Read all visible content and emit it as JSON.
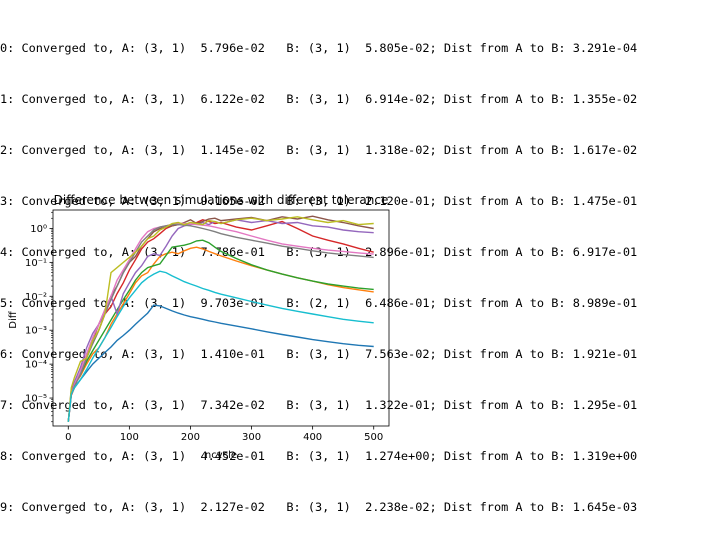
{
  "output": {
    "lines": [
      "0: Converged to, A: (3, 1)  5.796e-02   B: (3, 1)  5.805e-02; Dist from A to B: 3.291e-04",
      "1: Converged to, A: (3, 1)  6.122e-02   B: (3, 1)  6.914e-02; Dist from A to B: 1.355e-02",
      "2: Converged to, A: (3, 1)  1.145e-02   B: (3, 1)  1.318e-02; Dist from A to B: 1.617e-02",
      "3: Converged to, A: (3, 1)  9.165e-02   B: (3, 1)  2.120e-01; Dist from A to B: 1.475e-01",
      "4: Converged to, A: (3, 1)  7.786e-01   B: (3, 1)  2.896e-01; Dist from A to B: 6.917e-01",
      "5: Converged to, A: (3, 1)  9.703e-01   B: (2, 1)  6.486e-01; Dist from A to B: 8.989e-01",
      "6: Converged to, A: (3, 1)  1.410e-01   B: (3, 1)  7.563e-02; Dist from A to B: 1.921e-01",
      "7: Converged to, A: (3, 1)  7.342e-02   B: (3, 1)  1.322e-01; Dist from A to B: 1.295e-01",
      "8: Converged to, A: (3, 1)  4.452e-01   B: (3, 1)  1.274e+00; Dist from A to B: 1.319e+00",
      "9: Converged to, A: (3, 1)  2.127e-02   B: (3, 1)  2.238e-02; Dist from A to B: 1.645e-03"
    ]
  },
  "chart_data": {
    "type": "line",
    "title": "Difference between simulations with different tolerance",
    "xlabel": "ncycle",
    "ylabel": "Diff",
    "yscale": "log",
    "xlim": [
      -25,
      525
    ],
    "ylim": [
      1.5e-06,
      3.5
    ],
    "xticks": [
      0,
      100,
      200,
      300,
      400,
      500
    ],
    "xtick_labels": [
      "0",
      "100",
      "200",
      "300",
      "400",
      "500"
    ],
    "yticks": [
      1e-05,
      0.0001,
      0.001,
      0.01,
      0.1,
      1
    ],
    "ytick_labels": [
      "10⁻⁵",
      "10⁻⁴",
      "10⁻³",
      "10⁻²",
      "10⁻¹",
      "10⁰"
    ],
    "grid": false,
    "legend": "none",
    "x": [
      0,
      5,
      10,
      20,
      30,
      40,
      50,
      60,
      70,
      80,
      90,
      100,
      110,
      120,
      130,
      140,
      150,
      160,
      170,
      180,
      190,
      200,
      210,
      220,
      230,
      240,
      250,
      275,
      300,
      325,
      350,
      375,
      400,
      425,
      450,
      475,
      500
    ],
    "series": [
      {
        "color": "#1f77b4",
        "values": [
          2e-06,
          1.3e-05,
          2e-05,
          3.5e-05,
          6e-05,
          0.0001,
          0.00015,
          0.00022,
          0.00032,
          0.0005,
          0.0007,
          0.001,
          0.0015,
          0.0022,
          0.0032,
          0.0055,
          0.0052,
          0.0044,
          0.0037,
          0.0032,
          0.0028,
          0.0025,
          0.0023,
          0.0021,
          0.0019,
          0.00175,
          0.0016,
          0.00132,
          0.0011,
          0.0009,
          0.00075,
          0.00063,
          0.00053,
          0.00046,
          0.0004,
          0.00036,
          0.00033
        ]
      },
      {
        "color": "#ff7f0e",
        "values": [
          2e-06,
          1.6e-05,
          2.5e-05,
          4.5e-05,
          0.0001,
          0.0002,
          0.0003,
          0.0006,
          0.0015,
          0.003,
          0.006,
          0.012,
          0.025,
          0.04,
          0.05,
          0.09,
          0.15,
          0.18,
          0.2,
          0.18,
          0.22,
          0.26,
          0.28,
          0.25,
          0.21,
          0.18,
          0.155,
          0.11,
          0.08,
          0.06,
          0.045,
          0.035,
          0.028,
          0.022,
          0.018,
          0.0155,
          0.0135
        ]
      },
      {
        "color": "#2ca02c",
        "values": [
          2e-06,
          1.5e-05,
          2.5e-05,
          5e-05,
          0.00012,
          0.00025,
          0.0005,
          0.001,
          0.002,
          0.004,
          0.008,
          0.015,
          0.03,
          0.05,
          0.07,
          0.08,
          0.09,
          0.16,
          0.28,
          0.3,
          0.32,
          0.36,
          0.43,
          0.45,
          0.38,
          0.28,
          0.21,
          0.13,
          0.085,
          0.06,
          0.045,
          0.035,
          0.028,
          0.023,
          0.02,
          0.0175,
          0.016
        ]
      },
      {
        "color": "#d62728",
        "values": [
          2e-06,
          1.2e-05,
          2e-05,
          6e-05,
          0.0002,
          0.0004,
          0.001,
          0.003,
          0.005,
          0.012,
          0.025,
          0.06,
          0.12,
          0.25,
          0.4,
          0.5,
          0.7,
          1,
          1.2,
          1.3,
          1.4,
          1.3,
          1.5,
          1.8,
          1.6,
          1.4,
          1.5,
          1.1,
          0.9,
          1.2,
          1.6,
          1.0,
          0.6,
          0.45,
          0.35,
          0.26,
          0.2
        ]
      },
      {
        "color": "#9467bd",
        "values": [
          2e-06,
          1.8e-05,
          3e-05,
          8e-05,
          0.0003,
          0.0008,
          0.0015,
          0.003,
          0.01,
          0.003,
          0.012,
          0.025,
          0.05,
          0.08,
          0.15,
          0.18,
          0.16,
          0.3,
          0.6,
          1.0,
          1.2,
          1.3,
          1.4,
          1.5,
          1.3,
          1.6,
          1.4,
          1.8,
          1.5,
          1.7,
          1.4,
          1.5,
          1.2,
          1.1,
          0.9,
          0.8,
          0.75
        ]
      },
      {
        "color": "#8c564b",
        "values": [
          2e-06,
          1.5e-05,
          2.5e-05,
          5e-05,
          0.00015,
          0.0005,
          0.0015,
          0.004,
          0.01,
          0.02,
          0.05,
          0.1,
          0.15,
          0.3,
          0.5,
          0.8,
          1.0,
          1.1,
          1.2,
          1.3,
          1.5,
          1.8,
          1.4,
          1.6,
          1.9,
          2.0,
          1.7,
          1.9,
          2.1,
          1.7,
          2.2,
          1.9,
          2.3,
          1.8,
          1.5,
          1.2,
          1.0
        ]
      },
      {
        "color": "#e377c2",
        "values": [
          2e-06,
          1.4e-05,
          2.5e-05,
          6e-05,
          0.0002,
          0.0006,
          0.0015,
          0.004,
          0.01,
          0.03,
          0.06,
          0.12,
          0.25,
          0.5,
          0.8,
          1.0,
          1.1,
          1.2,
          1.3,
          1.4,
          1.4,
          1.35,
          1.3,
          1.25,
          1.2,
          1.1,
          1.0,
          0.8,
          0.6,
          0.45,
          0.35,
          0.3,
          0.26,
          0.23,
          0.21,
          0.19,
          0.175
        ]
      },
      {
        "color": "#7f7f7f",
        "values": [
          2e-06,
          1.3e-05,
          2.2e-05,
          5e-05,
          0.00015,
          0.0004,
          0.001,
          0.003,
          0.008,
          0.02,
          0.05,
          0.1,
          0.2,
          0.4,
          0.6,
          0.9,
          1.1,
          1.2,
          1.3,
          1.3,
          1.25,
          1.2,
          1.1,
          1.0,
          0.9,
          0.8,
          0.7,
          0.55,
          0.45,
          0.37,
          0.3,
          0.26,
          0.22,
          0.19,
          0.17,
          0.155,
          0.14
        ]
      },
      {
        "color": "#bcbd22",
        "values": [
          2e-06,
          2e-05,
          4e-05,
          0.00012,
          0.00015,
          0.0005,
          0.001,
          0.003,
          0.05,
          0.07,
          0.1,
          0.14,
          0.2,
          0.3,
          0.5,
          0.6,
          0.9,
          1.1,
          1.4,
          1.5,
          1.3,
          1.5,
          1.4,
          1.3,
          1.7,
          1.6,
          1.4,
          1.8,
          2.0,
          1.7,
          1.9,
          2.2,
          1.8,
          1.5,
          1.7,
          1.3,
          1.4
        ]
      },
      {
        "color": "#17becf",
        "values": [
          2e-06,
          1.3e-05,
          2e-05,
          3.5e-05,
          7e-05,
          0.00015,
          0.0003,
          0.0006,
          0.0012,
          0.0025,
          0.005,
          0.009,
          0.015,
          0.025,
          0.035,
          0.045,
          0.055,
          0.05,
          0.04,
          0.033,
          0.027,
          0.023,
          0.02,
          0.017,
          0.015,
          0.013,
          0.0115,
          0.009,
          0.007,
          0.0055,
          0.0044,
          0.0036,
          0.003,
          0.0025,
          0.0021,
          0.00185,
          0.00165
        ]
      }
    ]
  }
}
